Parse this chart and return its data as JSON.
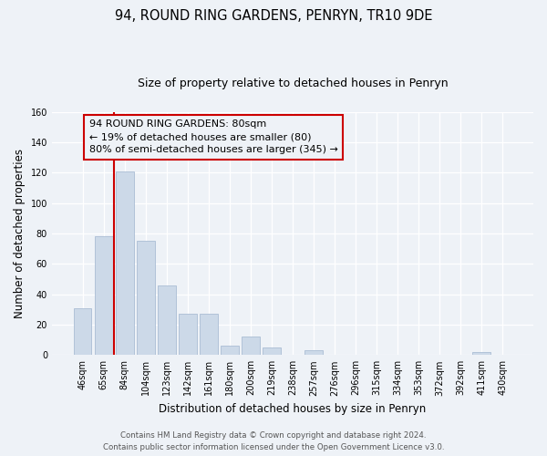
{
  "title": "94, ROUND RING GARDENS, PENRYN, TR10 9DE",
  "subtitle": "Size of property relative to detached houses in Penryn",
  "xlabel": "Distribution of detached houses by size in Penryn",
  "ylabel": "Number of detached properties",
  "bar_labels": [
    "46sqm",
    "65sqm",
    "84sqm",
    "104sqm",
    "123sqm",
    "142sqm",
    "161sqm",
    "180sqm",
    "200sqm",
    "219sqm",
    "238sqm",
    "257sqm",
    "276sqm",
    "296sqm",
    "315sqm",
    "334sqm",
    "353sqm",
    "372sqm",
    "392sqm",
    "411sqm",
    "430sqm"
  ],
  "bar_values": [
    31,
    78,
    121,
    75,
    46,
    27,
    27,
    6,
    12,
    5,
    0,
    3,
    0,
    0,
    0,
    0,
    0,
    0,
    0,
    2,
    0
  ],
  "bar_color": "#ccd9e8",
  "bar_edge_color": "#aabdd4",
  "vline_color": "#cc0000",
  "ylim": [
    0,
    160
  ],
  "yticks": [
    0,
    20,
    40,
    60,
    80,
    100,
    120,
    140,
    160
  ],
  "annotation_title": "94 ROUND RING GARDENS: 80sqm",
  "annotation_line1": "← 19% of detached houses are smaller (80)",
  "annotation_line2": "80% of semi-detached houses are larger (345) →",
  "footer_line1": "Contains HM Land Registry data © Crown copyright and database right 2024.",
  "footer_line2": "Contains public sector information licensed under the Open Government Licence v3.0.",
  "background_color": "#eef2f7",
  "grid_color": "#ffffff",
  "title_fontsize": 10.5,
  "subtitle_fontsize": 9,
  "axis_label_fontsize": 8.5,
  "tick_fontsize": 7,
  "annotation_fontsize": 8,
  "footer_fontsize": 6.2
}
